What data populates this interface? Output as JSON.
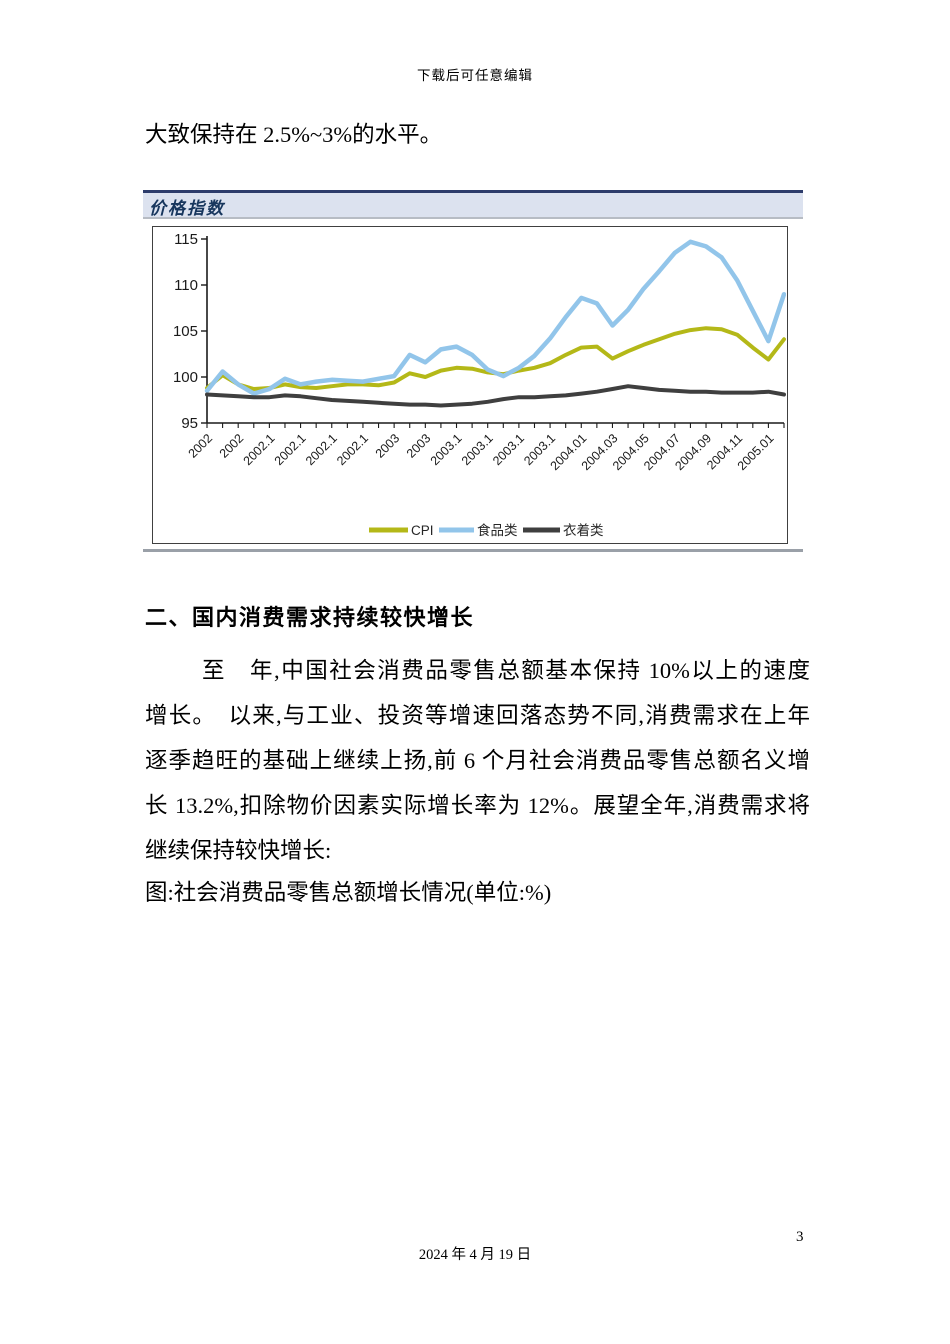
{
  "page": {
    "watermark": "下载后可任意编辑",
    "footer_date": "2024 年 4 月 19 日",
    "page_number": "3"
  },
  "intro_text": "大致保持在 2.5%~3%的水平。",
  "chart_panel": {
    "title": "价格指数",
    "band_bg": "#dce2ef",
    "band_border_top": "#2d3c6b",
    "title_color": "#17365d"
  },
  "chart_data": {
    "type": "line",
    "title": "价格指数",
    "xlabel": "",
    "ylabel": "",
    "ylim": [
      95,
      115
    ],
    "yticks": [
      95,
      100,
      105,
      110,
      115
    ],
    "grid": false,
    "legend_position": "bottom",
    "x_months": [
      "2002.01",
      "2002.02",
      "2002.03",
      "2002.04",
      "2002.05",
      "2002.06",
      "2002.07",
      "2002.08",
      "2002.09",
      "2002.10",
      "2002.11",
      "2002.12",
      "2003.01",
      "2003.02",
      "2003.03",
      "2003.04",
      "2003.05",
      "2003.06",
      "2003.07",
      "2003.08",
      "2003.09",
      "2003.10",
      "2003.11",
      "2003.12",
      "2004.01",
      "2004.02",
      "2004.03",
      "2004.04",
      "2004.05",
      "2004.06",
      "2004.07",
      "2004.08",
      "2004.09",
      "2004.10",
      "2004.11",
      "2004.12",
      "2005.01",
      "2005.02"
    ],
    "x_tick_labels": [
      "2002",
      "2002",
      "2002.1",
      "2002.1",
      "2002.1",
      "2002.1",
      "2003",
      "2003",
      "2003.1",
      "2003.1",
      "2003.1",
      "2003.1",
      "2004.01",
      "2004.03",
      "2004.05",
      "2004.07",
      "2004.09",
      "2004.11",
      "2005.01"
    ],
    "series": [
      {
        "key": "cpi",
        "name": "CPI",
        "color": "#b4b818",
        "width": 4,
        "values": [
          98.8,
          100.2,
          99.2,
          98.7,
          98.8,
          99.2,
          98.9,
          98.8,
          99.0,
          99.2,
          99.2,
          99.1,
          99.4,
          100.4,
          100.0,
          100.7,
          101.0,
          100.9,
          100.5,
          100.3,
          100.7,
          101.0,
          101.5,
          102.4,
          103.2,
          103.3,
          102.0,
          102.8,
          103.5,
          104.1,
          104.7,
          105.1,
          105.3,
          105.2,
          104.6,
          103.2,
          101.9,
          104.1
        ]
      },
      {
        "key": "food",
        "name": "食品类",
        "color": "#92c5ea",
        "width": 4.5,
        "values": [
          98.5,
          100.6,
          99.2,
          98.2,
          98.7,
          99.8,
          99.2,
          99.5,
          99.7,
          99.6,
          99.5,
          99.8,
          100.1,
          102.4,
          101.6,
          103.0,
          103.3,
          102.4,
          100.8,
          100.1,
          101.0,
          102.3,
          104.2,
          106.5,
          108.6,
          108.0,
          105.6,
          107.3,
          109.6,
          111.5,
          113.5,
          114.7,
          114.2,
          113.0,
          110.5,
          107.2,
          103.9,
          109.0
        ]
      },
      {
        "key": "clothing",
        "name": "衣着类",
        "color": "#3f3f3f",
        "width": 4,
        "values": [
          98.1,
          98.0,
          97.9,
          97.8,
          97.8,
          98.0,
          97.9,
          97.7,
          97.5,
          97.4,
          97.3,
          97.2,
          97.1,
          97.0,
          97.0,
          96.9,
          97.0,
          97.1,
          97.3,
          97.6,
          97.8,
          97.8,
          97.9,
          98.0,
          98.2,
          98.4,
          98.7,
          99.0,
          98.8,
          98.6,
          98.5,
          98.4,
          98.4,
          98.3,
          98.3,
          98.3,
          98.4,
          98.1
        ]
      }
    ]
  },
  "section": {
    "heading": "二、国内消费需求持续较快增长",
    "paragraph_lines": [
      "至　年,中国社会消费品零售总额基本保持 10%以上的速度",
      "增长。　以来,与工业、投资等增速回落态势不同,消费需求在上年",
      "逐季趋旺的基础上继续上扬,前 6 个月社会消费品零售总额名义增",
      "长 13.2%,扣除物价因素实际增长率为 12%。展望全年,消费需求将",
      "继续保持较快增长:"
    ],
    "figure_caption": "图:社会消费品零售总额增长情况(单位:%)"
  }
}
